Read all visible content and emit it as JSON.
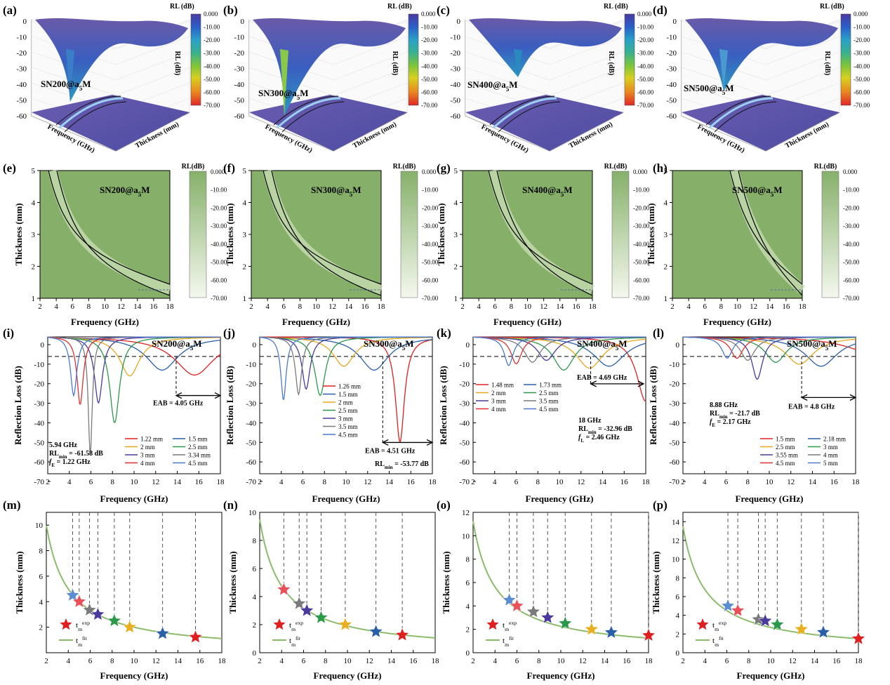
{
  "figure": {
    "panel_letters": [
      "(a)",
      "(b)",
      "(c)",
      "(d)",
      "(e)",
      "(f)",
      "(g)",
      "(h)",
      "(i)",
      "(j)",
      "(k)",
      "(l)",
      "(m)",
      "(n)",
      "(o)",
      "(p)"
    ],
    "samples": [
      "SN200@a5M",
      "SN300@a5M",
      "SN400@a5M",
      "SN500@a5M"
    ],
    "sample_base": [
      "SN200@a",
      "SN300@a",
      "SN400@a",
      "SN500@a"
    ],
    "sample_sub": "5",
    "sample_tail": "M"
  },
  "row1": {
    "colorbar_title": "RL (dB)",
    "colorbar_ticks": [
      [
        "0.000",
        "-10.00",
        "-20.00",
        "-30.00",
        "-40.00",
        "-50.00",
        "-60.00",
        "-70.00"
      ],
      [
        "0.000",
        "-10.00",
        "-20.00",
        "-30.00",
        "-40.00",
        "-50.00",
        "-60.00",
        "-70.00"
      ],
      [
        "0.000",
        "-10.00",
        "-20.00",
        "-30.00",
        "-40.00",
        "-50.00",
        "-60.00",
        "-70.00"
      ],
      [
        "0.000",
        "-10.00",
        "-20.00",
        "-30.00",
        "-40.00",
        "-50.00",
        "-60.00",
        "-70.00"
      ]
    ],
    "z_ticks": [
      "0",
      "-10",
      "-20",
      "-30",
      "-40",
      "-50",
      "-60"
    ],
    "z_label": "RL (dB)",
    "freq_label": "Frequency (GHz)",
    "thick_label": "Thickness (mm)",
    "colors": [
      "#e02828",
      "#e07a20",
      "#e8c81e",
      "#7ac43c",
      "#2ea89a",
      "#2a6cc0",
      "#4a3a9e",
      "#6a4aa8"
    ]
  },
  "row2": {
    "colorbar_title": "RL(dB)",
    "colorbar_ticks": [
      [
        "0.000",
        "-10.00",
        "-20.00",
        "-30.00",
        "-40.00",
        "-50.00",
        "-60.00",
        "-70.00"
      ],
      [
        "0.000",
        "-10.00",
        "-20.00",
        "-30.00",
        "-40.00",
        "-50.00",
        "-60.00",
        "-70.00"
      ],
      [
        "0.000",
        "-10.00",
        "-20.00",
        "-30.00",
        "-40.00",
        "-50.00",
        "-60.00",
        "-70.00"
      ],
      [
        "0.000",
        "-10.00",
        "-20.00",
        "-30.00",
        "-40.00",
        "-50.00",
        "-60.00",
        "-70.00"
      ]
    ],
    "xlabel": "Frequency (GHz)",
    "ylabel": "Thickness (mm)",
    "x_ticks": [
      "2",
      "4",
      "6",
      "8",
      "10",
      "12",
      "14",
      "16",
      "18"
    ],
    "y_ticks": [
      "1",
      "2",
      "3",
      "4",
      "5"
    ],
    "fill_color": "#86b06a"
  },
  "row3": {
    "xlabel": "Frequency (GHz)",
    "ylabel": "Reflection Loss (dB)",
    "x_ticks": [
      "2",
      "4",
      "6",
      "8",
      "10",
      "12",
      "14",
      "16",
      "18"
    ],
    "y_ticks": [
      "0",
      "-10",
      "-20",
      "-30",
      "-40",
      "-50",
      "-60",
      "-70"
    ],
    "legends": [
      [
        [
          "1.22 mm",
          "#e02020"
        ],
        [
          "1.5 mm",
          "#2a5fa8"
        ],
        [
          "2 mm",
          "#e8a81e"
        ],
        [
          "2.5 mm",
          "#2a9a4a"
        ],
        [
          "3 mm",
          "#4a3a9e"
        ],
        [
          "3.34 mm",
          "#7a7a7a"
        ],
        [
          "4 mm",
          "#e03030"
        ],
        [
          "4.5 mm",
          "#4a7ad0"
        ]
      ],
      [
        [
          "1.26 mm",
          "#e02020"
        ],
        [
          "1.5 mm",
          "#2a5fa8"
        ],
        [
          "2 mm",
          "#e8a81e"
        ],
        [
          "2.5 mm",
          "#2a9a4a"
        ],
        [
          "3 mm",
          "#4a3a9e"
        ],
        [
          "3.5 mm",
          "#7a7a7a"
        ],
        [
          "4.5 mm",
          "#4a7ad0"
        ]
      ],
      [
        [
          "1.48 mm",
          "#e02020"
        ],
        [
          "1.73 mm",
          "#2a5fa8"
        ],
        [
          "2 mm",
          "#e8a81e"
        ],
        [
          "2.5 mm",
          "#2a9a4a"
        ],
        [
          "3 mm",
          "#4a3a9e"
        ],
        [
          "3.5 mm",
          "#7a7a7a"
        ],
        [
          "4 mm",
          "#e03030"
        ],
        [
          "4.5 mm",
          "#4a7ad0"
        ]
      ],
      [
        [
          "1.5 mm",
          "#e02020"
        ],
        [
          "2.18 mm",
          "#2a5fa8"
        ],
        [
          "2.5 mm",
          "#e8a81e"
        ],
        [
          "3 mm",
          "#2a9a4a"
        ],
        [
          "3.55 mm",
          "#4a3a9e"
        ],
        [
          "4 mm",
          "#7a7a7a"
        ],
        [
          "4.5 mm",
          "#e03030"
        ],
        [
          "5 mm",
          "#4a7ad0"
        ]
      ]
    ],
    "eab_labels": [
      "EAB = 4.05 GHz",
      "EAB = 4.51 GHz",
      "EAB = 4.69 GHz",
      "EAB = 4.8 GHz"
    ],
    "notes": [
      {
        "freq": "5.94 GHz",
        "rl_pre": "RL",
        "rl_sub": "min",
        "rl_val": " = -61.58 dB",
        "f_pre": "f",
        "f_sub": "E",
        "f_val": " = 1.22 GHz"
      },
      {
        "rl_pre": "RL",
        "rl_sub": "min",
        "rl_val": " = -53.77 dB"
      },
      {
        "freq": "18 GHz",
        "rl_pre": "RL",
        "rl_sub": "min",
        "rl_val": " = -32.96 dB",
        "f_pre": "f",
        "f_sub": "L",
        "f_val": " = 2.46 GHz"
      },
      {
        "freq": "8.88 GHz",
        "rl_pre": "RL",
        "rl_sub": "min",
        "rl_val": " = -21.7 dB",
        "f_pre": "f",
        "f_sub": "E",
        "f_val": " = 2.17 GHz"
      }
    ]
  },
  "row4": {
    "xlabel": "Frequency (GHz)",
    "ylabel": "Thickness (mm)",
    "x_ticks": [
      "2",
      "4",
      "6",
      "8",
      "10",
      "12",
      "14",
      "16",
      "18"
    ],
    "y_ticks": [
      [
        "2",
        "4",
        "6",
        "8",
        "10"
      ],
      [
        "0",
        "2",
        "4",
        "6",
        "8",
        "10"
      ],
      [
        "0",
        "2",
        "4",
        "6",
        "8",
        "10",
        "12"
      ],
      [
        "0",
        "2",
        "4",
        "6",
        "8",
        "10",
        "12",
        "14"
      ]
    ],
    "legend_exp_base": "t",
    "legend_exp_sub": "m",
    "legend_exp_sup": "exp",
    "legend_fit_sup": "fit",
    "fit_color": "#8cbc6a",
    "star_colors": [
      "#5a8ed0",
      "#e8505a",
      "#7a7a7a",
      "#4a3a9e",
      "#2a9a4a",
      "#e8b020",
      "#2a5fa8",
      "#e02020"
    ]
  },
  "chart_data": [
    {
      "type": "line",
      "title": "SN200@a5M",
      "xlabel": "Frequency (GHz)",
      "ylabel": "Reflection Loss (dB)",
      "xlim": [
        2,
        18
      ],
      "ylim": [
        -70,
        0
      ],
      "series": [
        {
          "name": "1.22 mm",
          "f0": 15.6,
          "depth": -19.5,
          "w": 2.2
        },
        {
          "name": "1.5 mm",
          "f0": 12.6,
          "depth": -17,
          "w": 1.8
        },
        {
          "name": "2 mm",
          "f0": 9.6,
          "depth": -20,
          "w": 1.1
        },
        {
          "name": "2.5 mm",
          "f0": 8.2,
          "depth": -44,
          "w": 0.55
        },
        {
          "name": "3 mm",
          "f0": 6.7,
          "depth": -34,
          "w": 0.45
        },
        {
          "name": "3.34 mm",
          "f0": 5.94,
          "depth": -61.58,
          "w": 0.22
        },
        {
          "name": "4 mm",
          "f0": 5.0,
          "depth": -36,
          "w": 0.35
        },
        {
          "name": "4.5 mm",
          "f0": 4.4,
          "depth": -32,
          "w": 0.35
        }
      ]
    },
    {
      "type": "line",
      "title": "SN300@a5M",
      "xlabel": "Frequency (GHz)",
      "ylabel": "Reflection Loss (dB)",
      "xlim": [
        2,
        18
      ],
      "ylim": [
        -70,
        0
      ],
      "series": [
        {
          "name": "1.26 mm",
          "f0": 15.0,
          "depth": -53.77,
          "w": 0.5
        },
        {
          "name": "1.5 mm",
          "f0": 12.6,
          "depth": -17,
          "w": 1.6
        },
        {
          "name": "2 mm",
          "f0": 9.8,
          "depth": -15,
          "w": 1.2
        },
        {
          "name": "2.5 mm",
          "f0": 7.6,
          "depth": -30,
          "w": 0.6
        },
        {
          "name": "3 mm",
          "f0": 6.3,
          "depth": -27,
          "w": 0.45
        },
        {
          "name": "3.5 mm",
          "f0": 5.6,
          "depth": -30,
          "w": 0.35
        },
        {
          "name": "4.5 mm",
          "f0": 4.2,
          "depth": -35,
          "w": 0.3
        }
      ]
    },
    {
      "type": "line",
      "title": "SN400@a5M",
      "xlabel": "Frequency (GHz)",
      "ylabel": "Reflection Loss (dB)",
      "xlim": [
        2,
        18
      ],
      "ylim": [
        -70,
        0
      ],
      "series": [
        {
          "name": "1.48 mm",
          "f0": 18.0,
          "depth": -32.96,
          "w": 1.0
        },
        {
          "name": "1.73 mm",
          "f0": 14.6,
          "depth": -15,
          "w": 1.8
        },
        {
          "name": "2 mm",
          "f0": 12.8,
          "depth": -16,
          "w": 1.5
        },
        {
          "name": "2.5 mm",
          "f0": 10.4,
          "depth": -17,
          "w": 1.2
        },
        {
          "name": "3 mm",
          "f0": 8.8,
          "depth": -12,
          "w": 1.0
        },
        {
          "name": "3.5 mm",
          "f0": 7.5,
          "depth": -13,
          "w": 0.9
        },
        {
          "name": "4 mm",
          "f0": 6.0,
          "depth": -14,
          "w": 0.6
        },
        {
          "name": "4.5 mm",
          "f0": 5.3,
          "depth": -15,
          "w": 0.5
        }
      ]
    },
    {
      "type": "line",
      "title": "SN500@a5M",
      "xlabel": "Frequency (GHz)",
      "ylabel": "Reflection Loss (dB)",
      "xlim": [
        2,
        18
      ],
      "ylim": [
        -70,
        0
      ],
      "series": [
        {
          "name": "1.5 mm",
          "f0": 19.5,
          "depth": -8,
          "w": 3.0
        },
        {
          "name": "2.18 mm",
          "f0": 14.8,
          "depth": -15,
          "w": 1.8
        },
        {
          "name": "2.5 mm",
          "f0": 12.8,
          "depth": -14,
          "w": 1.6
        },
        {
          "name": "3 mm",
          "f0": 10.6,
          "depth": -13,
          "w": 1.2
        },
        {
          "name": "3.55 mm",
          "f0": 8.88,
          "depth": -21.7,
          "w": 0.6
        },
        {
          "name": "4 mm",
          "f0": 8.0,
          "depth": -12,
          "w": 0.8
        },
        {
          "name": "4.5 mm",
          "f0": 7.0,
          "depth": -11,
          "w": 0.7
        },
        {
          "name": "5 mm",
          "f0": 6.1,
          "depth": -11,
          "w": 0.6
        }
      ]
    },
    {
      "type": "scatter",
      "title": "SN200@a5M",
      "xlabel": "Frequency (GHz)",
      "ylabel": "Thickness (mm)",
      "xlim": [
        2,
        18
      ],
      "ylim": [
        0,
        11
      ],
      "x": [
        4.4,
        5.0,
        5.94,
        6.7,
        8.2,
        9.6,
        12.6,
        15.6
      ],
      "y": [
        4.5,
        4.0,
        3.34,
        3.0,
        2.5,
        2.0,
        1.5,
        1.22
      ],
      "fit_k": 20.0
    },
    {
      "type": "scatter",
      "title": "SN300@a5M",
      "xlabel": "Frequency (GHz)",
      "ylabel": "Thickness (mm)",
      "xlim": [
        2,
        18
      ],
      "ylim": [
        0,
        10
      ],
      "x": [
        4.2,
        5.6,
        6.3,
        7.6,
        9.8,
        12.6,
        15.0
      ],
      "y": [
        4.5,
        3.5,
        3.0,
        2.5,
        2.0,
        1.5,
        1.26
      ],
      "fit_k": 19.0
    },
    {
      "type": "scatter",
      "title": "SN400@a5M",
      "xlabel": "Frequency (GHz)",
      "ylabel": "Thickness (mm)",
      "xlim": [
        2,
        18
      ],
      "ylim": [
        0,
        12
      ],
      "x": [
        5.3,
        6.0,
        7.5,
        8.8,
        10.4,
        12.8,
        14.6,
        18.0
      ],
      "y": [
        4.5,
        4.0,
        3.5,
        3.0,
        2.5,
        2.0,
        1.73,
        1.48
      ],
      "fit_k": 22.5
    },
    {
      "type": "scatter",
      "title": "SN500@a5M",
      "xlabel": "Frequency (GHz)",
      "ylabel": "Thickness (mm)",
      "xlim": [
        2,
        18
      ],
      "ylim": [
        0,
        15
      ],
      "x": [
        6.1,
        7.0,
        8.88,
        9.5,
        10.6,
        12.8,
        14.8,
        18.0
      ],
      "y": [
        5.0,
        4.5,
        3.55,
        3.4,
        3.0,
        2.5,
        2.18,
        1.5
      ],
      "fit_k": 27.0
    }
  ]
}
